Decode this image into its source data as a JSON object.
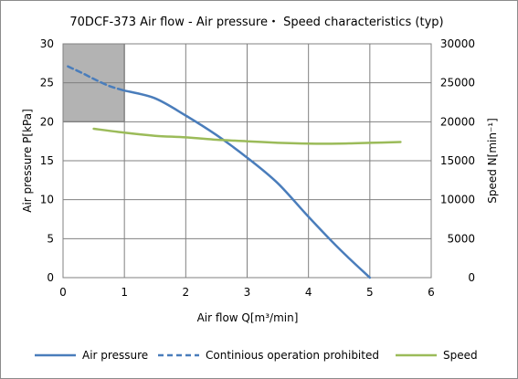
{
  "chart_data": {
    "type": "line",
    "title": "70DCF-373  Air flow - Air pressure・ Speed characteristics (typ)",
    "xlabel": "Air flow  Q[m³/min]",
    "ylabel": "Air pressure  P[kPa]",
    "y2label": "Speed  N[min⁻¹]",
    "xlim": [
      0,
      6
    ],
    "ylim": [
      0,
      30
    ],
    "y2lim": [
      0,
      30000
    ],
    "x_ticks": [
      "0",
      "1",
      "2",
      "3",
      "4",
      "5",
      "6"
    ],
    "y_ticks": [
      "0",
      "5",
      "10",
      "15",
      "20",
      "25",
      "30"
    ],
    "y2_ticks": [
      "0",
      "5000",
      "10000",
      "15000",
      "20000",
      "25000",
      "30000"
    ],
    "grid": true,
    "legend_position": "bottom",
    "prohibited_region": {
      "x": [
        0,
        1
      ],
      "y": [
        20,
        30
      ],
      "color": "#b3b3b3"
    },
    "series": [
      {
        "name": "Air pressure",
        "axis": "left",
        "color": "#4a7dbb",
        "dash": false,
        "x": [
          1.0,
          1.5,
          2.0,
          2.5,
          3.0,
          3.5,
          4.0,
          4.5,
          5.0
        ],
        "y": [
          24.0,
          23.0,
          20.8,
          18.3,
          15.4,
          12.1,
          7.8,
          3.7,
          0.0
        ]
      },
      {
        "name": "Continious operation prohibited",
        "axis": "left",
        "color": "#4a7dbb",
        "dash": true,
        "x": [
          0.08,
          0.3,
          0.5,
          0.75,
          1.0
        ],
        "y": [
          27.1,
          26.3,
          25.5,
          24.6,
          24.0
        ]
      },
      {
        "name": "Speed",
        "axis": "right",
        "color": "#9bbb59",
        "dash": false,
        "x": [
          0.5,
          1.0,
          1.5,
          2.0,
          2.5,
          3.0,
          3.5,
          4.0,
          4.5,
          5.0,
          5.5
        ],
        "y": [
          19100,
          18600,
          18200,
          18000,
          17700,
          17500,
          17300,
          17200,
          17200,
          17300,
          17400
        ]
      }
    ]
  }
}
